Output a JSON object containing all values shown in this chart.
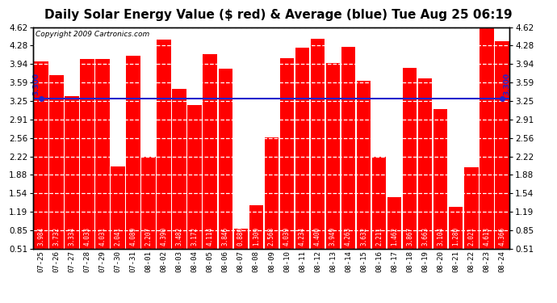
{
  "title": "Daily Solar Energy Value ($ red) & Average (blue) Tue Aug 25 06:19",
  "copyright": "Copyright 2009 Cartronics.com",
  "average_value": 3.3,
  "average_label": "3.300",
  "bar_color": "#ff0000",
  "avg_line_color": "#2222cc",
  "background_color": "#ffffff",
  "plot_bg_color": "#ffffff",
  "grid_color": "#cccccc",
  "categories": [
    "07-25",
    "07-26",
    "07-27",
    "07-28",
    "07-29",
    "07-30",
    "07-31",
    "08-01",
    "08-02",
    "08-03",
    "08-04",
    "08-05",
    "08-06",
    "08-07",
    "08-08",
    "08-09",
    "08-10",
    "08-11",
    "08-12",
    "08-13",
    "08-14",
    "08-15",
    "08-16",
    "08-17",
    "08-18",
    "08-19",
    "08-20",
    "08-21",
    "08-22",
    "08-23",
    "08-24"
  ],
  "values": [
    3.984,
    3.732,
    3.334,
    4.033,
    4.031,
    2.041,
    4.089,
    2.207,
    4.39,
    3.482,
    3.172,
    4.114,
    3.846,
    0.88,
    1.309,
    2.568,
    4.039,
    4.234,
    4.4,
    3.949,
    4.263,
    3.632,
    2.211,
    1.462,
    3.867,
    3.663,
    3.104,
    1.28,
    2.021,
    4.613,
    4.366
  ],
  "ylim_min": 0.51,
  "ylim_max": 4.62,
  "yticks": [
    0.51,
    0.85,
    1.19,
    1.54,
    1.88,
    2.22,
    2.56,
    2.91,
    3.25,
    3.59,
    3.94,
    4.28,
    4.62
  ],
  "title_fontsize": 11,
  "copyright_fontsize": 6.5,
  "tick_fontsize": 6.5,
  "bar_label_fontsize": 5.5,
  "avg_label_fontsize": 6.5,
  "ytick_fontsize": 7.5
}
